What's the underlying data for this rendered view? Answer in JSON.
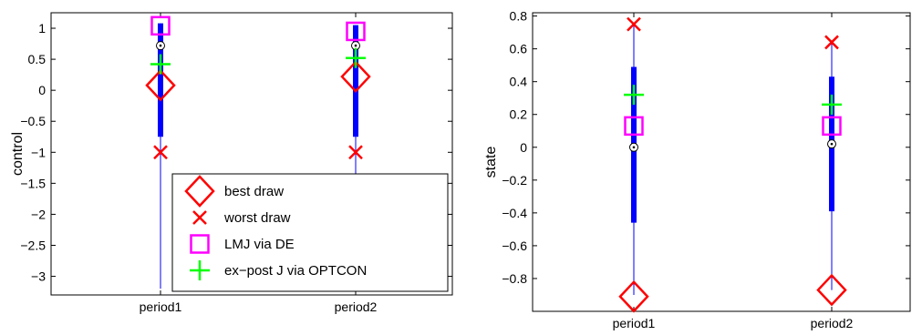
{
  "chart_data": [
    {
      "type": "boxplot",
      "ylabel": "control",
      "categories": [
        "period1",
        "period2"
      ],
      "ylim": [
        -3.3,
        1.25
      ],
      "yticks": [
        1,
        0.5,
        0,
        -0.5,
        -1,
        -1.5,
        -2,
        -2.5,
        -3
      ],
      "ytick_labels": [
        "1",
        "0.5",
        "0",
        "−0.5",
        "−1",
        "−1.5",
        "−2",
        "−2.5",
        "−3"
      ],
      "boxes": [
        {
          "whisker_low": -3.2,
          "box_low": -0.75,
          "median": 0.72,
          "box_high": 1.08,
          "whisker_high": 1.08
        },
        {
          "whisker_low": -3.2,
          "box_low": -0.75,
          "median": 0.72,
          "box_high": 1.05,
          "whisker_high": 1.05
        }
      ],
      "series": [
        {
          "name": "best draw",
          "marker": "diamond",
          "color": "#ff0000",
          "values": [
            0.08,
            0.22
          ]
        },
        {
          "name": "worst draw",
          "marker": "x",
          "color": "#ff0000",
          "values": [
            -1.0,
            -1.0
          ]
        },
        {
          "name": "LMJ via DE",
          "marker": "square",
          "color": "#ff00ff",
          "values": [
            1.04,
            0.95
          ]
        },
        {
          "name": "ex−post J via OPTCON",
          "marker": "plus",
          "color": "#00ff00",
          "values": [
            0.42,
            0.52
          ]
        }
      ],
      "legend": "lower-right",
      "grid": false
    },
    {
      "type": "boxplot",
      "ylabel": "state",
      "categories": [
        "period1",
        "period2"
      ],
      "ylim": [
        -1.0,
        0.82
      ],
      "yticks": [
        0.8,
        0.6,
        0.4,
        0.2,
        0,
        -0.2,
        -0.4,
        -0.6,
        -0.8
      ],
      "ytick_labels": [
        "0.8",
        "0.6",
        "0.4",
        "0.2",
        "0",
        "−0.2",
        "−0.4",
        "−0.6",
        "−0.8"
      ],
      "boxes": [
        {
          "whisker_low": -0.9,
          "box_low": -0.46,
          "median": 0.0,
          "box_high": 0.49,
          "whisker_high": 0.75
        },
        {
          "whisker_low": -0.87,
          "box_low": -0.39,
          "median": 0.02,
          "box_high": 0.43,
          "whisker_high": 0.64
        }
      ],
      "series": [
        {
          "name": "best draw",
          "marker": "diamond",
          "color": "#ff0000",
          "values": [
            -0.91,
            -0.87
          ]
        },
        {
          "name": "worst draw",
          "marker": "x",
          "color": "#ff0000",
          "values": [
            0.75,
            0.64
          ]
        },
        {
          "name": "LMJ via DE",
          "marker": "square",
          "color": "#ff00ff",
          "values": [
            0.13,
            0.13
          ]
        },
        {
          "name": "ex−post J via OPTCON",
          "marker": "plus",
          "color": "#00ff00",
          "values": [
            0.32,
            0.26
          ]
        }
      ],
      "grid": false
    }
  ],
  "colors": {
    "box": "#0000ff",
    "whisker": "#0000ff",
    "median_marker": "#000000",
    "axes": "#000000"
  }
}
